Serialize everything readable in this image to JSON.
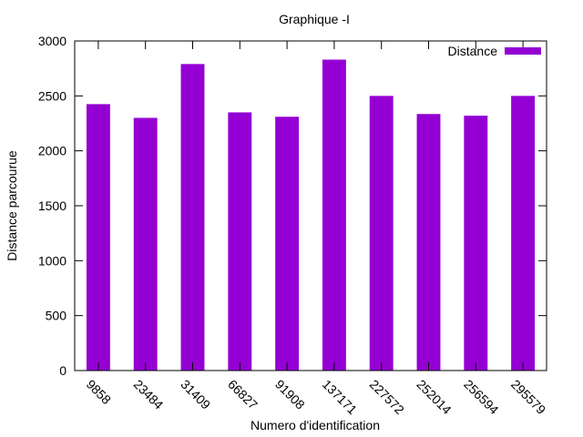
{
  "chart_data": {
    "type": "bar",
    "title": "Graphique -I",
    "xlabel": "Numero d'identification",
    "ylabel": "Distance parcourue",
    "categories": [
      "9858",
      "23484",
      "31409",
      "66827",
      "91908",
      "137171",
      "227572",
      "252014",
      "256594",
      "295579"
    ],
    "series": [
      {
        "name": "Distance",
        "values": [
          2425,
          2300,
          2790,
          2350,
          2310,
          2830,
          2500,
          2335,
          2320,
          2500
        ],
        "color": "#9400d3"
      }
    ],
    "ylim": [
      0,
      3000
    ],
    "yticks": [
      0,
      500,
      1000,
      1500,
      2000,
      2500,
      3000
    ],
    "legend_position": "top-right",
    "grid": false
  }
}
